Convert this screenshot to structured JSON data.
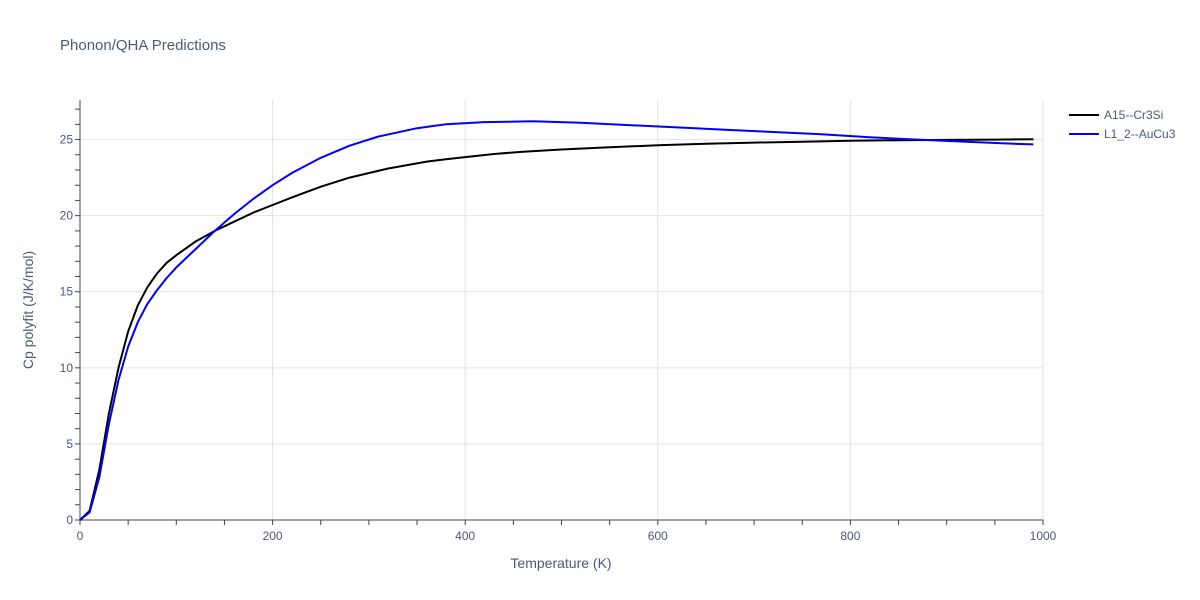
{
  "chart_data": {
    "type": "line",
    "title": "Phonon/QHA Predictions",
    "xlabel": "Temperature (K)",
    "ylabel": "Cp polyfit (J/K/mol)",
    "xlim": [
      0,
      1000
    ],
    "ylim": [
      0,
      27.6
    ],
    "xticks": [
      0,
      200,
      400,
      600,
      800,
      1000
    ],
    "yticks": [
      0,
      5,
      10,
      15,
      20,
      25
    ],
    "grid": true,
    "legend_position": "top-right",
    "series": [
      {
        "name": "A15--Cr3Si",
        "color": "#000000",
        "x": [
          0,
          10,
          20,
          30,
          40,
          50,
          60,
          70,
          80,
          90,
          100,
          120,
          140,
          160,
          180,
          200,
          220,
          250,
          280,
          320,
          360,
          380,
          400,
          430,
          460,
          500,
          550,
          600,
          650,
          700,
          750,
          800,
          850,
          900,
          950,
          990
        ],
        "y": [
          0,
          0.6,
          3.3,
          7.0,
          10.0,
          12.4,
          14.1,
          15.3,
          16.2,
          16.9,
          17.4,
          18.3,
          19.0,
          19.6,
          20.2,
          20.7,
          21.2,
          21.9,
          22.5,
          23.1,
          23.55,
          23.7,
          23.85,
          24.05,
          24.2,
          24.35,
          24.5,
          24.62,
          24.72,
          24.8,
          24.86,
          24.92,
          24.96,
          24.98,
          25.0,
          25.02
        ]
      },
      {
        "name": "L1_2--AuCu3",
        "color": "#0000ff",
        "x": [
          0,
          10,
          20,
          30,
          40,
          50,
          60,
          70,
          80,
          90,
          100,
          120,
          140,
          160,
          180,
          200,
          220,
          250,
          280,
          310,
          350,
          380,
          420,
          470,
          520,
          570,
          620,
          670,
          720,
          770,
          820,
          870,
          920,
          970,
          990
        ],
        "y": [
          0,
          0.5,
          2.8,
          6.3,
          9.2,
          11.4,
          13.0,
          14.2,
          15.1,
          15.9,
          16.6,
          17.8,
          19.0,
          20.1,
          21.1,
          22.0,
          22.8,
          23.8,
          24.6,
          25.2,
          25.75,
          26.0,
          26.15,
          26.2,
          26.1,
          25.95,
          25.8,
          25.65,
          25.5,
          25.35,
          25.15,
          25.0,
          24.85,
          24.72,
          24.68
        ]
      }
    ]
  }
}
